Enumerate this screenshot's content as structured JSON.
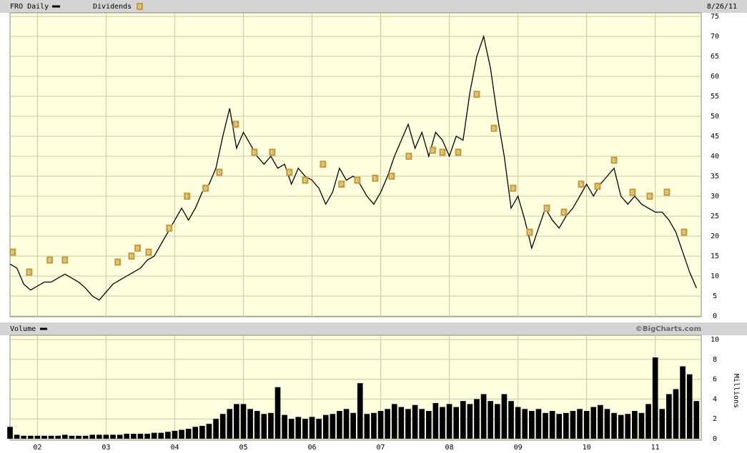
{
  "chart_data": [
    {
      "type": "line",
      "title": "FRO Daily",
      "date": "8/26/11",
      "xlim": [
        2001.6,
        2011.67
      ],
      "ylim": [
        0,
        75
      ],
      "yticks": [
        0,
        5,
        10,
        15,
        20,
        25,
        30,
        35,
        40,
        45,
        50,
        55,
        60,
        65,
        70,
        75
      ],
      "grid": true,
      "x": [
        2001.6,
        2001.7,
        2001.8,
        2001.9,
        2002.0,
        2002.1,
        2002.2,
        2002.3,
        2002.4,
        2002.5,
        2002.6,
        2002.7,
        2002.8,
        2002.9,
        2003.0,
        2003.1,
        2003.2,
        2003.3,
        2003.4,
        2003.5,
        2003.6,
        2003.7,
        2003.8,
        2003.9,
        2004.0,
        2004.1,
        2004.2,
        2004.3,
        2004.4,
        2004.5,
        2004.6,
        2004.7,
        2004.8,
        2004.9,
        2005.0,
        2005.1,
        2005.2,
        2005.3,
        2005.4,
        2005.5,
        2005.6,
        2005.7,
        2005.8,
        2005.9,
        2006.0,
        2006.1,
        2006.2,
        2006.3,
        2006.4,
        2006.5,
        2006.6,
        2006.7,
        2006.8,
        2006.9,
        2007.0,
        2007.1,
        2007.2,
        2007.3,
        2007.4,
        2007.5,
        2007.6,
        2007.7,
        2007.8,
        2007.9,
        2008.0,
        2008.1,
        2008.2,
        2008.3,
        2008.4,
        2008.5,
        2008.6,
        2008.7,
        2008.8,
        2008.9,
        2009.0,
        2009.1,
        2009.2,
        2009.3,
        2009.4,
        2009.5,
        2009.6,
        2009.7,
        2009.8,
        2009.9,
        2010.0,
        2010.1,
        2010.2,
        2010.3,
        2010.4,
        2010.5,
        2010.6,
        2010.7,
        2010.8,
        2010.9,
        2011.0,
        2011.1,
        2011.2,
        2011.3,
        2011.4,
        2011.5,
        2011.6
      ],
      "series": [
        {
          "name": "FRO Daily",
          "color": "#000000",
          "values": [
            13,
            12,
            8,
            6.5,
            7.5,
            8.5,
            8.5,
            9.5,
            10.5,
            9.5,
            8.5,
            7,
            5,
            4,
            6,
            8,
            9,
            10,
            11,
            12,
            14,
            15,
            18,
            21,
            24,
            27,
            24,
            27,
            31,
            33,
            37,
            45,
            52,
            42,
            46,
            43,
            40,
            38,
            40,
            37,
            38,
            33,
            37,
            35,
            34,
            32,
            28,
            31,
            37,
            34,
            35,
            33,
            30,
            28,
            31,
            35,
            40,
            44,
            48,
            42,
            46,
            40,
            46,
            44,
            40,
            45,
            44,
            56,
            65,
            70,
            62,
            50,
            40,
            27,
            30,
            24,
            17,
            22,
            27,
            24,
            22,
            25,
            27,
            30,
            33,
            30,
            33,
            35,
            37,
            30,
            28,
            30,
            28,
            27,
            26,
            26,
            24,
            21,
            16,
            11,
            7
          ]
        },
        {
          "name": "Dividends",
          "color": "#c8a040",
          "marker_label": "D",
          "x": [
            2001.64,
            2001.88,
            2002.18,
            2002.4,
            2003.17,
            2003.37,
            2003.46,
            2003.62,
            2003.92,
            2004.18,
            2004.45,
            2004.65,
            2004.89,
            2005.16,
            2005.42,
            2005.67,
            2005.9,
            2006.16,
            2006.43,
            2006.66,
            2006.92,
            2007.16,
            2007.41,
            2007.76,
            2007.9,
            2008.13,
            2008.4,
            2008.65,
            2008.93,
            2009.17,
            2009.42,
            2009.67,
            2009.92,
            2010.16,
            2010.4,
            2010.67,
            2010.92,
            2011.17,
            2011.42
          ],
          "values": [
            16,
            11,
            14,
            14,
            13.5,
            15,
            17,
            16,
            22,
            30,
            32,
            36,
            48,
            41,
            41,
            36,
            34,
            38,
            33,
            34,
            34.5,
            35,
            40,
            41.5,
            41,
            41,
            55.5,
            47,
            32,
            21,
            27,
            26,
            33,
            32.5,
            39,
            31,
            30,
            31,
            21
          ]
        }
      ]
    },
    {
      "type": "bar",
      "title": "Volume",
      "source": "©BigCharts.com",
      "ylabel": "Millions",
      "xlim": [
        2001.6,
        2011.67
      ],
      "ylim": [
        0,
        10
      ],
      "yticks": [
        0,
        2,
        4,
        6,
        8,
        10
      ],
      "grid": true,
      "xticks": [
        {
          "value": 2002,
          "label": "02"
        },
        {
          "value": 2003,
          "label": "03"
        },
        {
          "value": 2004,
          "label": "04"
        },
        {
          "value": 2005,
          "label": "05"
        },
        {
          "value": 2006,
          "label": "06"
        },
        {
          "value": 2007,
          "label": "07"
        },
        {
          "value": 2008,
          "label": "08"
        },
        {
          "value": 2009,
          "label": "09"
        },
        {
          "value": 2010,
          "label": "10"
        },
        {
          "value": 2011,
          "label": "11"
        }
      ],
      "x": [
        2001.6,
        2001.7,
        2001.8,
        2001.9,
        2002.0,
        2002.1,
        2002.2,
        2002.3,
        2002.4,
        2002.5,
        2002.6,
        2002.7,
        2002.8,
        2002.9,
        2003.0,
        2003.1,
        2003.2,
        2003.3,
        2003.4,
        2003.5,
        2003.6,
        2003.7,
        2003.8,
        2003.9,
        2004.0,
        2004.1,
        2004.2,
        2004.3,
        2004.4,
        2004.5,
        2004.6,
        2004.7,
        2004.8,
        2004.9,
        2005.0,
        2005.1,
        2005.2,
        2005.3,
        2005.4,
        2005.5,
        2005.6,
        2005.7,
        2005.8,
        2005.9,
        2006.0,
        2006.1,
        2006.2,
        2006.3,
        2006.4,
        2006.5,
        2006.6,
        2006.7,
        2006.8,
        2006.9,
        2007.0,
        2007.1,
        2007.2,
        2007.3,
        2007.4,
        2007.5,
        2007.6,
        2007.7,
        2007.8,
        2007.9,
        2008.0,
        2008.1,
        2008.2,
        2008.3,
        2008.4,
        2008.5,
        2008.6,
        2008.7,
        2008.8,
        2008.9,
        2009.0,
        2009.1,
        2009.2,
        2009.3,
        2009.4,
        2009.5,
        2009.6,
        2009.7,
        2009.8,
        2009.9,
        2010.0,
        2010.1,
        2010.2,
        2010.3,
        2010.4,
        2010.5,
        2010.6,
        2010.7,
        2010.8,
        2010.9,
        2011.0,
        2011.1,
        2011.2,
        2011.3,
        2011.4,
        2011.5,
        2011.6
      ],
      "series": [
        {
          "name": "Volume",
          "color": "#000000",
          "values": [
            1.2,
            0.4,
            0.3,
            0.3,
            0.3,
            0.3,
            0.3,
            0.3,
            0.4,
            0.3,
            0.3,
            0.3,
            0.4,
            0.4,
            0.4,
            0.4,
            0.4,
            0.5,
            0.5,
            0.5,
            0.5,
            0.6,
            0.6,
            0.7,
            0.8,
            0.9,
            1.0,
            1.2,
            1.3,
            1.5,
            2.0,
            2.5,
            3.0,
            3.5,
            3.5,
            3.0,
            2.8,
            2.5,
            2.6,
            5.2,
            2.4,
            2.0,
            2.2,
            2.0,
            2.2,
            2.0,
            2.4,
            2.5,
            2.8,
            3.0,
            2.6,
            5.6,
            2.5,
            2.6,
            2.8,
            3.0,
            3.5,
            3.2,
            3.0,
            3.4,
            3.0,
            2.8,
            3.6,
            3.2,
            3.5,
            3.2,
            3.8,
            3.5,
            4.0,
            4.5,
            3.8,
            3.5,
            4.5,
            3.8,
            3.2,
            3.0,
            2.8,
            3.0,
            2.6,
            2.8,
            2.5,
            2.6,
            2.8,
            3.0,
            2.8,
            3.2,
            3.4,
            3.0,
            2.6,
            2.4,
            2.5,
            2.8,
            2.6,
            3.5,
            8.2,
            3.0,
            4.5,
            5.0,
            7.3,
            6.5,
            3.8
          ]
        }
      ]
    }
  ]
}
